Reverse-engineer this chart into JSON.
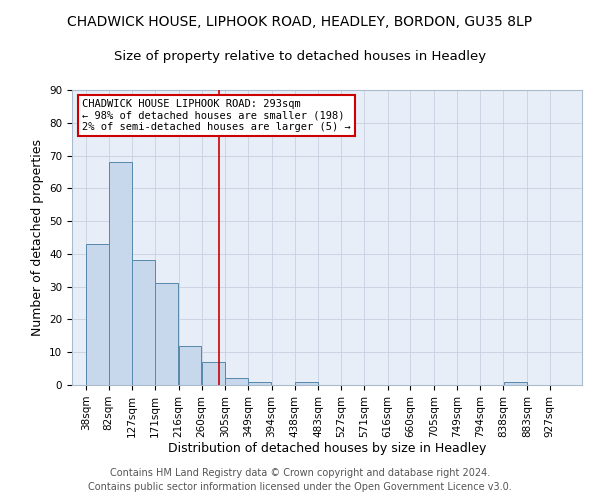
{
  "title": "CHADWICK HOUSE, LIPHOOK ROAD, HEADLEY, BORDON, GU35 8LP",
  "subtitle": "Size of property relative to detached houses in Headley",
  "xlabel": "Distribution of detached houses by size in Headley",
  "ylabel": "Number of detached properties",
  "bin_labels": [
    "38sqm",
    "82sqm",
    "127sqm",
    "171sqm",
    "216sqm",
    "260sqm",
    "305sqm",
    "349sqm",
    "394sqm",
    "438sqm",
    "483sqm",
    "527sqm",
    "571sqm",
    "616sqm",
    "660sqm",
    "705sqm",
    "749sqm",
    "794sqm",
    "838sqm",
    "883sqm",
    "927sqm"
  ],
  "bin_edges": [
    38,
    82,
    127,
    171,
    216,
    260,
    305,
    349,
    394,
    438,
    483,
    527,
    571,
    616,
    660,
    705,
    749,
    794,
    838,
    883,
    927
  ],
  "bar_heights": [
    43,
    68,
    38,
    31,
    12,
    7,
    2,
    1,
    0,
    1,
    0,
    0,
    0,
    0,
    0,
    0,
    0,
    0,
    1,
    0
  ],
  "bar_color": "#c8d8ec",
  "bar_edge_color": "#5588aa",
  "red_line_x": 293,
  "ylim": [
    0,
    90
  ],
  "yticks": [
    0,
    10,
    20,
    30,
    40,
    50,
    60,
    70,
    80,
    90
  ],
  "annotation_title": "CHADWICK HOUSE LIPHOOK ROAD: 293sqm",
  "annotation_line1": "← 98% of detached houses are smaller (198)",
  "annotation_line2": "2% of semi-detached houses are larger (5) →",
  "footer1": "Contains HM Land Registry data © Crown copyright and database right 2024.",
  "footer2": "Contains public sector information licensed under the Open Government Licence v3.0.",
  "bg_color": "#ffffff",
  "plot_bg_color": "#e8eef8",
  "grid_color": "#c8d0e0",
  "annotation_box_color": "#ffffff",
  "annotation_border_color": "#cc0000",
  "red_line_color": "#cc0000",
  "title_fontsize": 10,
  "subtitle_fontsize": 9.5,
  "axis_label_fontsize": 9,
  "tick_fontsize": 7.5,
  "annotation_fontsize": 7.5,
  "footer_fontsize": 7
}
